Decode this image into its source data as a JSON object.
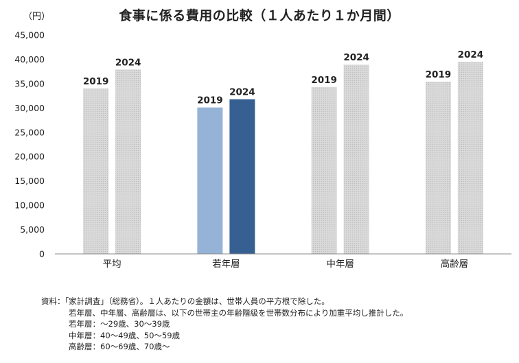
{
  "chart_data": {
    "type": "bar",
    "title": "食事に係る費用の比較（１人あたり１か月間）",
    "unit_label": "（円）",
    "categories": [
      "平均",
      "若年層",
      "中年層",
      "高齢層"
    ],
    "series": [
      {
        "name": "2019",
        "values": [
          34000,
          30100,
          34300,
          35400
        ]
      },
      {
        "name": "2024",
        "values": [
          37900,
          31800,
          38900,
          39500
        ]
      }
    ],
    "ylim": [
      0,
      45000
    ],
    "yticks": [
      0,
      5000,
      10000,
      15000,
      20000,
      25000,
      30000,
      35000,
      40000,
      45000
    ],
    "ytick_labels": [
      "0",
      "5,000",
      "10,000",
      "15,000",
      "20,000",
      "25,000",
      "30,000",
      "35,000",
      "40,000",
      "45,000"
    ],
    "highlight_category": "若年層",
    "colors": {
      "default_fill": "#d9d9d9",
      "highlight_2019": "#95b3d7",
      "highlight_2024": "#376092",
      "axis": "#888888"
    }
  },
  "notes": {
    "source": "資料：「家計調査」（総務省）。１人あたりの金額は、世帯人員の平方根で除した。",
    "line2": "若年層、中年層、高齢層は、以下の世帯主の年齢階級を世帯数分布により加重平均し推計した。",
    "young": "若年層：～29歳、30～39歳",
    "middle": "中年層：40～49歳、50～59歳",
    "elderly": "高齢層：60～69歳、70歳～"
  }
}
